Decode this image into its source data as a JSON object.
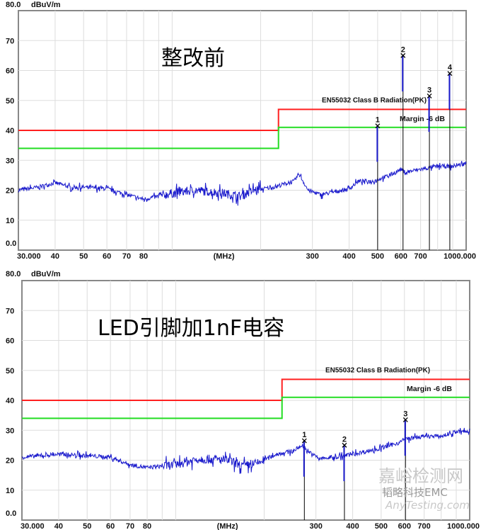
{
  "chart_data": [
    {
      "type": "line",
      "title": "整改前",
      "ylabel": "dBuV/m",
      "ytop_label": "80.0",
      "xlabel": "(MHz)",
      "x_scale": "log",
      "xlim": [
        30,
        1000
      ],
      "ylim": [
        0,
        80
      ],
      "grid": true,
      "x_tick_labels": [
        "30.000",
        "40",
        "50",
        "60",
        "70",
        "80",
        "300",
        "400",
        "500",
        "600",
        "700",
        "1000.000"
      ],
      "x_tick_values": [
        30,
        40,
        50,
        60,
        70,
        80,
        300,
        400,
        500,
        600,
        700,
        1000
      ],
      "y_tick_labels": [
        "0.0",
        "10",
        "20",
        "30",
        "40",
        "50",
        "60",
        "70"
      ],
      "y_tick_values": [
        0,
        10,
        20,
        30,
        40,
        50,
        60,
        70
      ],
      "limit_lines": [
        {
          "name": "EN55032 Class B Radiation(PK)",
          "color": "#ff2020",
          "steps": [
            [
              30,
              40
            ],
            [
              230,
              40
            ],
            [
              230,
              47
            ],
            [
              1000,
              47
            ]
          ]
        },
        {
          "name": "Margin -6 dB",
          "color": "#22dd22",
          "steps": [
            [
              30,
              34
            ],
            [
              230,
              34
            ],
            [
              230,
              41
            ],
            [
              1000,
              41
            ]
          ]
        }
      ],
      "series": [
        {
          "color": "#1a1acc",
          "x": [
            30,
            35,
            40,
            45,
            50,
            60,
            70,
            80,
            90,
            100,
            120,
            150,
            170,
            190,
            220,
            260,
            270,
            290,
            320,
            380,
            400,
            430,
            480,
            550,
            600,
            620,
            700,
            800,
            900,
            1000
          ],
          "y": [
            20,
            21,
            22.5,
            21,
            21,
            20.5,
            18.5,
            17,
            18,
            19,
            20,
            19,
            18,
            20,
            21,
            23,
            25.5,
            20,
            18.5,
            20,
            20.5,
            23,
            23,
            25,
            27,
            26,
            27,
            28,
            28,
            29
          ]
        }
      ],
      "markers": [
        {
          "label": "1",
          "x": 500,
          "y": 41.5
        },
        {
          "label": "2",
          "x": 610,
          "y": 65
        },
        {
          "label": "3",
          "x": 750,
          "y": 51.5
        },
        {
          "label": "4",
          "x": 880,
          "y": 59
        }
      ]
    },
    {
      "type": "line",
      "title": "LED引脚加1nF电容",
      "ylabel": "dBuV/m",
      "ytop_label": "80.0",
      "xlabel": "(MHz)",
      "x_scale": "log",
      "xlim": [
        30,
        1000
      ],
      "ylim": [
        0,
        80
      ],
      "grid": true,
      "x_tick_labels": [
        "30.000",
        "40",
        "50",
        "60",
        "70",
        "80",
        "300",
        "400",
        "500",
        "600",
        "700",
        "1000.000"
      ],
      "x_tick_values": [
        30,
        40,
        50,
        60,
        70,
        80,
        300,
        400,
        500,
        600,
        700,
        1000
      ],
      "y_tick_labels": [
        "0.0",
        "10",
        "20",
        "30",
        "40",
        "50",
        "60",
        "70"
      ],
      "y_tick_values": [
        0,
        10,
        20,
        30,
        40,
        50,
        60,
        70
      ],
      "limit_lines": [
        {
          "name": "EN55032 Class B Radiation(PK)",
          "color": "#ff2020",
          "steps": [
            [
              30,
              40
            ],
            [
              230,
              40
            ],
            [
              230,
              47
            ],
            [
              1000,
              47
            ]
          ]
        },
        {
          "name": "Margin -6 dB",
          "color": "#22dd22",
          "steps": [
            [
              30,
              34
            ],
            [
              230,
              34
            ],
            [
              230,
              41
            ],
            [
              1000,
              41
            ]
          ]
        }
      ],
      "series": [
        {
          "color": "#1a1acc",
          "x": [
            30,
            40,
            50,
            60,
            70,
            80,
            100,
            120,
            150,
            170,
            190,
            220,
            250,
            270,
            290,
            310,
            350,
            400,
            500,
            580,
            600,
            700,
            800,
            900,
            1000
          ],
          "y": [
            21,
            22,
            21.5,
            21,
            18.5,
            17.5,
            18.5,
            20.5,
            20,
            18,
            19,
            22,
            23,
            25,
            22,
            20.5,
            21,
            22,
            24,
            26,
            27,
            28,
            28,
            29.5,
            29.5
          ]
        }
      ],
      "markers": [
        {
          "label": "1",
          "x": 274,
          "y": 26.5
        },
        {
          "label": "2",
          "x": 375,
          "y": 25
        },
        {
          "label": "3",
          "x": 605,
          "y": 33.5
        }
      ]
    }
  ],
  "watermark": {
    "site": "嘉峪检测网",
    "url": "AnyTesting.com",
    "account": "韬略科技EMC"
  }
}
